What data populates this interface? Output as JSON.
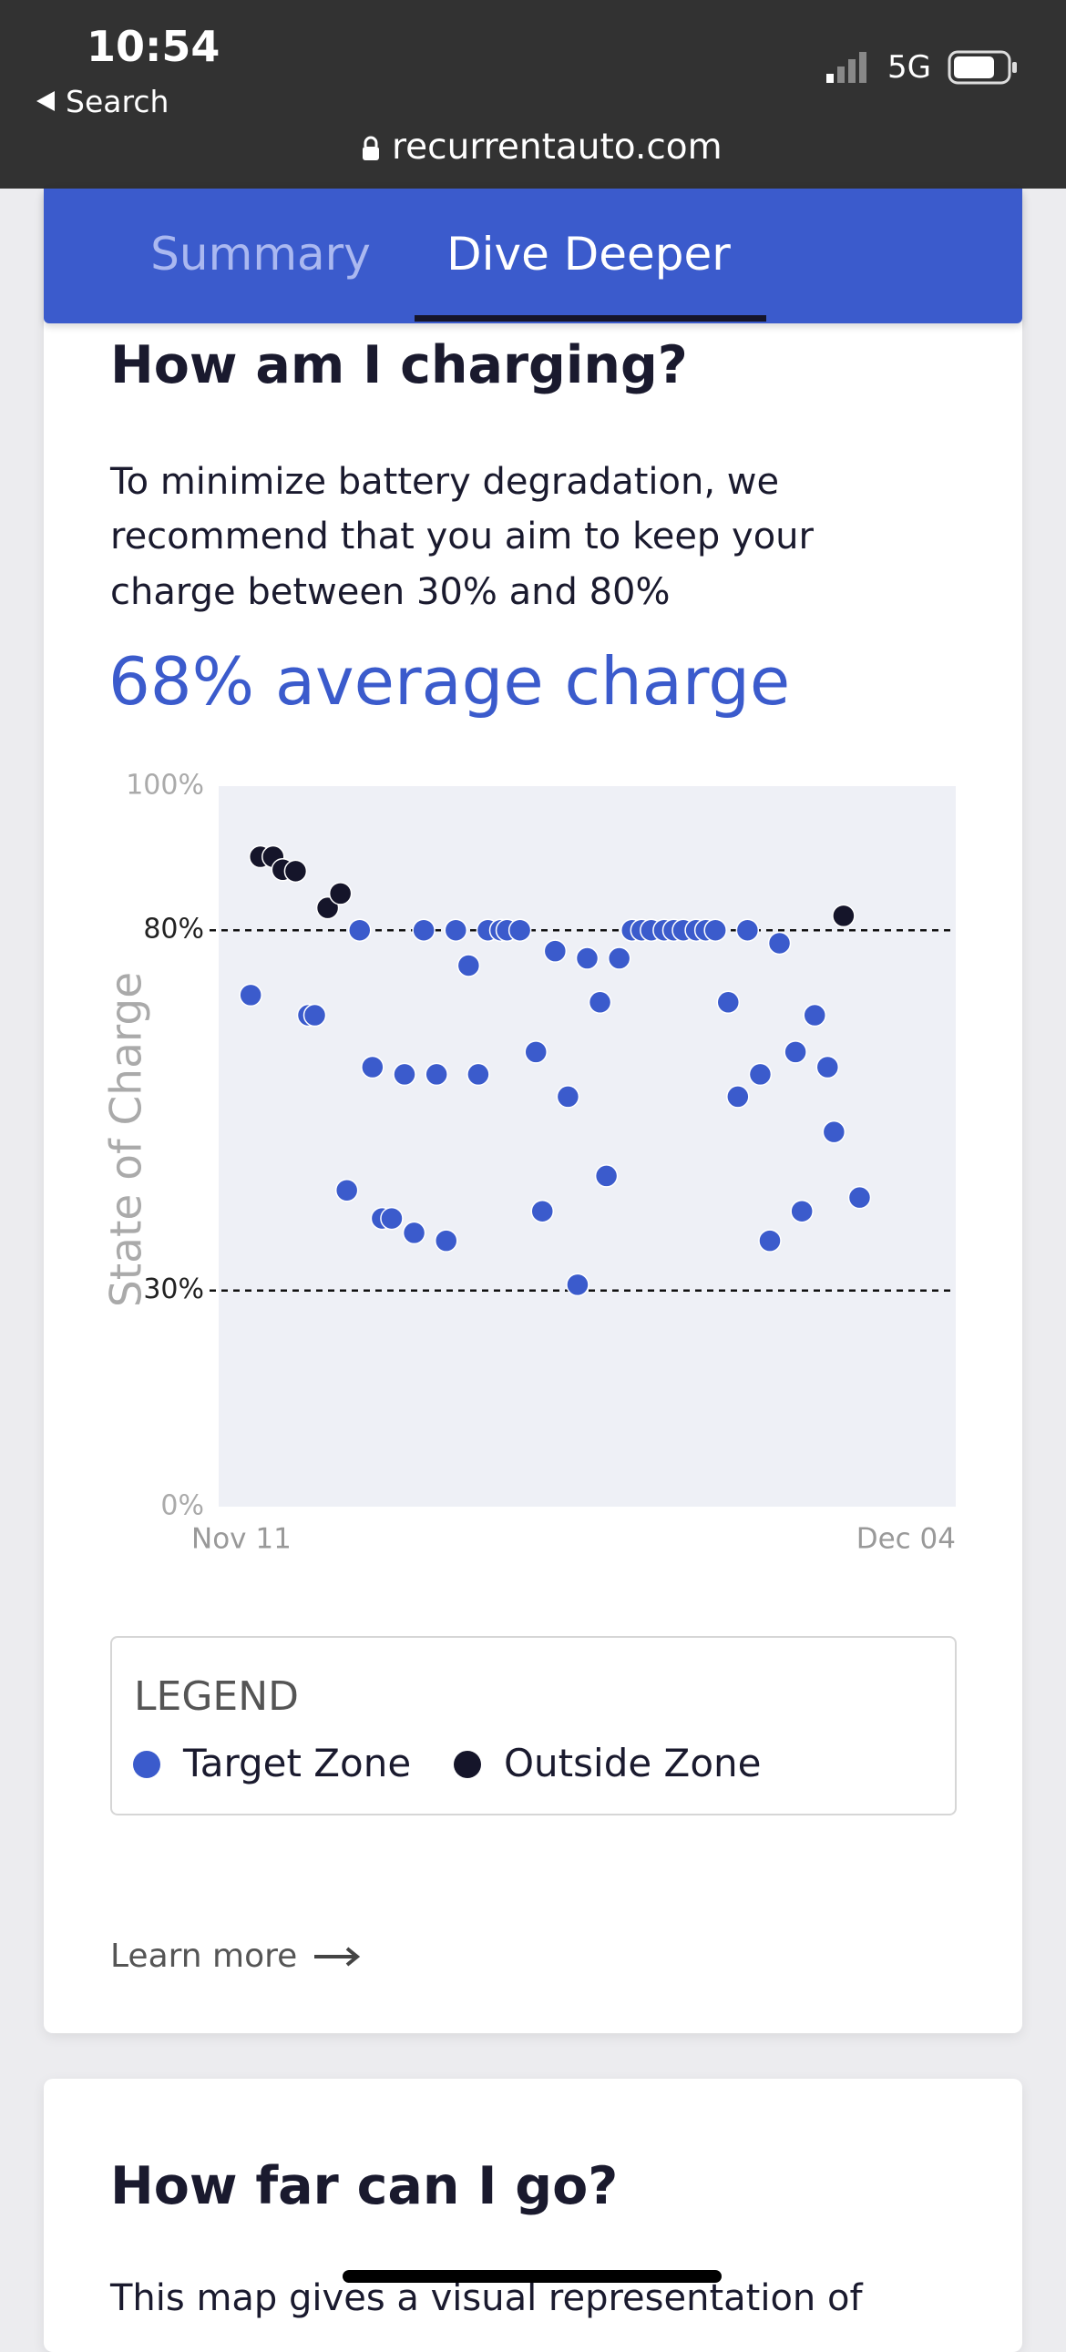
{
  "status_bar": {
    "time": "10:54",
    "back": "Search",
    "network": "5G",
    "url": "recurrentauto.com"
  },
  "tabs": [
    "Summary",
    "Dive Deeper"
  ],
  "card": {
    "title": "How am I charging?",
    "description_lines": [
      "To minimize battery degradation, we",
      "recommend that you aim to keep your",
      "charge between 30% and 80%"
    ],
    "average": "68% average charge",
    "legend_title": "LEGEND",
    "link": "Learn more"
  },
  "chart_data": {
    "type": "scatter",
    "ylabel": "State of Charge",
    "xlim": [
      0,
      23
    ],
    "xticks": [
      {
        "value": 0,
        "label": "Nov 11"
      },
      {
        "value": 23,
        "label": "Dec 04"
      }
    ],
    "ylim": [
      0,
      100
    ],
    "yticks": [
      {
        "value": 0,
        "label": "0%"
      },
      {
        "value": 30,
        "label": "30%"
      },
      {
        "value": 80,
        "label": "80%"
      },
      {
        "value": 100,
        "label": "100%"
      }
    ],
    "reference_lines": [
      30,
      80
    ],
    "series": [
      {
        "name": "Target Zone",
        "color": "#3b5bcc",
        "x": [
          1.0,
          2.8,
          3.0,
          4.0,
          4.4,
          4.8,
          5.1,
          5.4,
          5.8,
          6.1,
          6.4,
          6.8,
          7.1,
          7.4,
          7.8,
          8.1,
          8.4,
          8.8,
          9.0,
          9.4,
          9.9,
          10.1,
          10.5,
          10.9,
          11.2,
          11.5,
          11.9,
          12.1,
          12.5,
          12.9,
          13.2,
          13.5,
          13.9,
          14.2,
          14.5,
          14.9,
          15.2,
          15.5,
          15.9,
          16.2,
          16.5,
          16.9,
          17.2,
          17.5,
          18.0,
          18.2,
          18.6,
          19.0,
          19.2,
          20.0
        ],
        "values": [
          71.0,
          68.2,
          68.2,
          43.9,
          80,
          61.0,
          40.0,
          40.0,
          60.0,
          38.0,
          80,
          60.0,
          36.9,
          80,
          75.1,
          60.0,
          80,
          80,
          80,
          80,
          63.1,
          41.0,
          77.1,
          56.9,
          30.8,
          76.1,
          70.0,
          45.9,
          76.1,
          80,
          80,
          80,
          80,
          80,
          80,
          80,
          80,
          80,
          70.0,
          56.9,
          80,
          60.0,
          36.9,
          78.2,
          63.1,
          41.0,
          68.2,
          61.0,
          52.0,
          42.9
        ]
      },
      {
        "name": "Outside Zone",
        "color": "#15152a",
        "x": [
          1.3,
          1.7,
          2.0,
          2.4,
          3.4,
          3.8,
          19.5
        ],
        "values": [
          90.2,
          90.2,
          88.4,
          88.2,
          83.1,
          85.1,
          82.0
        ]
      }
    ]
  },
  "next_card": {
    "title": "How far can I go?",
    "description": "This map gives a visual representation of"
  }
}
